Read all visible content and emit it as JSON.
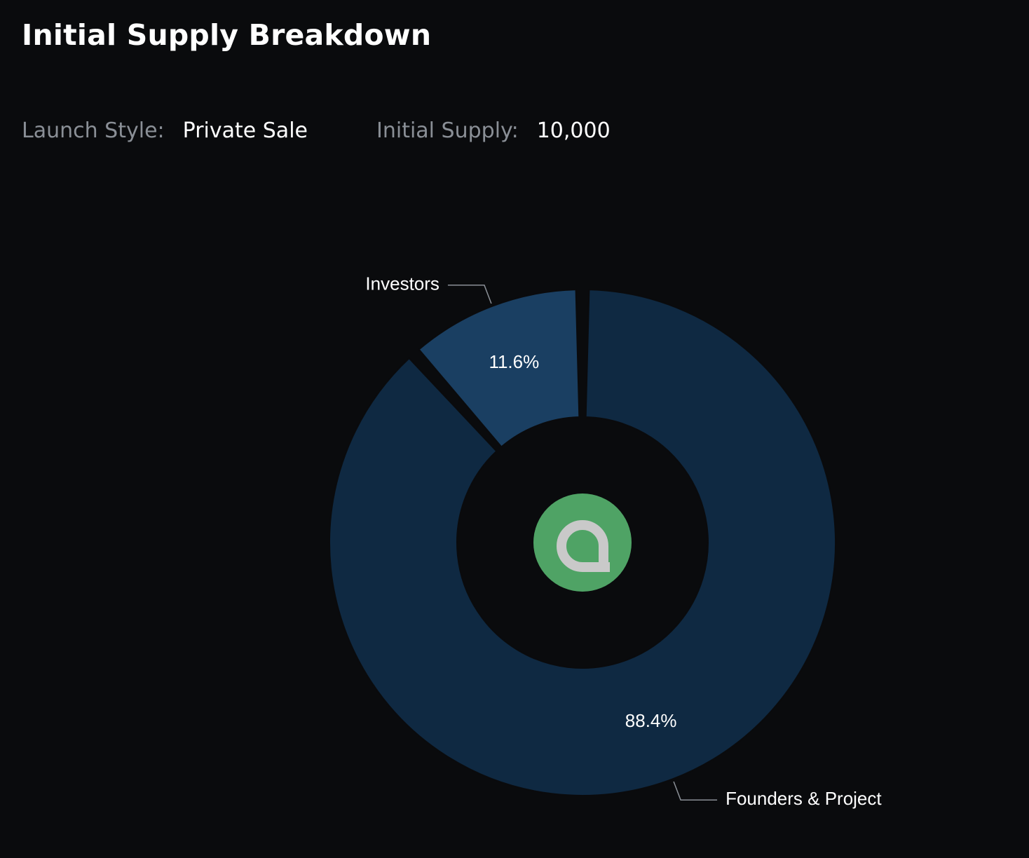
{
  "page": {
    "title": "Initial Supply Breakdown"
  },
  "meta": {
    "launch_style_label": "Launch Style:",
    "launch_style_value": "Private Sale",
    "initial_supply_label": "Initial Supply:",
    "initial_supply_value": "10,000"
  },
  "center_logo": {
    "icon": "green-circle-logo-icon",
    "circle_color": "#4fa365",
    "glyph_color": "#c9c9c9"
  },
  "chart_data": {
    "type": "pie",
    "subtype": "donut",
    "title": "",
    "categories": [
      "Founders & Project",
      "Investors"
    ],
    "values": [
      88.4,
      11.6
    ],
    "value_labels": [
      "88.4%",
      "11.6%"
    ],
    "unit": "%",
    "colors": [
      "#0f2942",
      "#1a3f62"
    ],
    "legend": "none",
    "labels_style": "callouts"
  }
}
